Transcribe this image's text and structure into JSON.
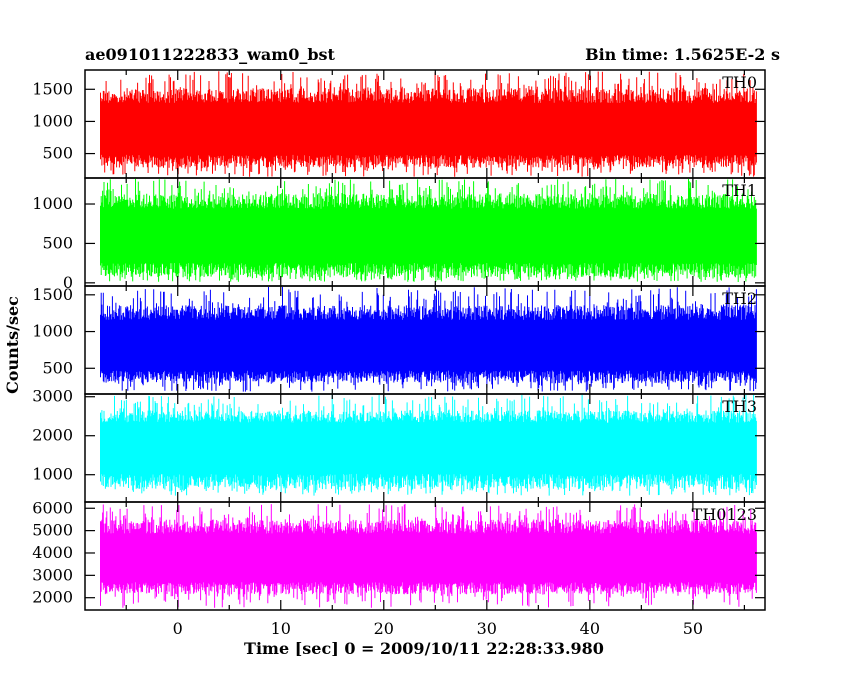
{
  "chart_data": {
    "type": "line",
    "title_left": "ae091011222833_wam0_bst",
    "title_right": "Bin time: 1.5625E-2 s",
    "xlabel": "Time [sec] 0 = 2009/10/11 22:28:33.980",
    "ylabel": "Counts/sec",
    "xlim": [
      -9,
      57
    ],
    "x_range_data": [
      -7.5,
      56.2
    ],
    "xticks": [
      0,
      10,
      20,
      30,
      40,
      50
    ],
    "panels": [
      {
        "name": "TH0",
        "color": "#ff0000",
        "ylim": [
          120,
          1800
        ],
        "yticks": [
          500,
          1000,
          1500
        ],
        "mean": 850,
        "band": [
          280,
          1520
        ],
        "spike_min": 140,
        "spike_max": 1780
      },
      {
        "name": "TH1",
        "color": "#00ff00",
        "ylim": [
          -40,
          1330
        ],
        "yticks": [
          0,
          500,
          1000
        ],
        "mean": 590,
        "band": [
          70,
          1130
        ],
        "spike_min": 10,
        "spike_max": 1320
      },
      {
        "name": "TH2",
        "color": "#0000ff",
        "ylim": [
          150,
          1620
        ],
        "yticks": [
          500,
          1000,
          1500
        ],
        "mean": 780,
        "band": [
          300,
          1360
        ],
        "spike_min": 180,
        "spike_max": 1610
      },
      {
        "name": "TH3",
        "color": "#00ffff",
        "ylim": [
          300,
          3070
        ],
        "yticks": [
          1000,
          2000,
          3000
        ],
        "mean": 1750,
        "band": [
          630,
          2650
        ],
        "spike_min": 460,
        "spike_max": 3060
      },
      {
        "name": "TH0123",
        "color": "#ff00ff",
        "ylim": [
          1450,
          6280
        ],
        "yticks": [
          2000,
          3000,
          4000,
          5000,
          6000
        ],
        "mean": 3700,
        "band": [
          2150,
          5500
        ],
        "spike_min": 1550,
        "spike_max": 6200
      }
    ]
  }
}
